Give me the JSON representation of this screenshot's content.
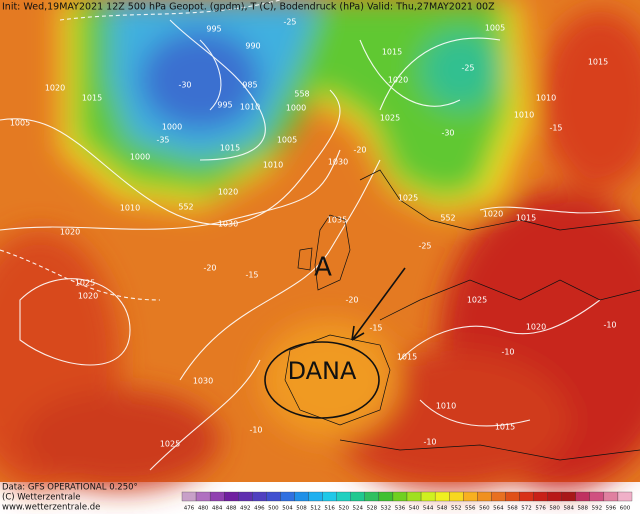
{
  "header": {
    "text": "Init: Wed,19MAY2021 12Z 500 hPa Geopot. (gpdm), T (C), Bodendruck (hPa) Valid: Thu,27MAY2021 00Z"
  },
  "footer": {
    "data_source": "Data: GFS OPERATIONAL 0.250°",
    "copyright": "(C) Wetterzentrale",
    "website": "www.wetterzentrale.de"
  },
  "annotations": {
    "high": "A",
    "low": "DANA"
  },
  "map": {
    "contour_labels": [
      "1005",
      "1020",
      "1015",
      "1000",
      "1000",
      "995",
      "990",
      "985",
      "995",
      "1010",
      "1005",
      "1010",
      "1000",
      "1015",
      "1020",
      "1030",
      "1030",
      "1035",
      "1025",
      "1020",
      "1015",
      "1025",
      "1020",
      "1015",
      "1010",
      "1010",
      "1005",
      "1015",
      "1010",
      "1020",
      "1025",
      "1020",
      "1030",
      "1025",
      "1015",
      "1010",
      "1015",
      "1025",
      "1020",
      "-25",
      "-25",
      "-30",
      "-35",
      "-30",
      "-20",
      "-25",
      "-20",
      "-15",
      "-20",
      "-15",
      "-10",
      "-10",
      "-10",
      "-10",
      "-15",
      "552",
      "552",
      "558"
    ]
  },
  "color_scale": {
    "ticks": [
      476,
      480,
      484,
      488,
      492,
      496,
      500,
      504,
      508,
      512,
      516,
      520,
      524,
      528,
      532,
      536,
      540,
      544,
      548,
      552,
      556,
      560,
      564,
      568,
      572,
      576,
      580,
      584,
      588,
      592,
      596,
      600
    ],
    "colors": [
      "#c8a0c8",
      "#b070c0",
      "#9040b0",
      "#7020a0",
      "#6030b0",
      "#5040c0",
      "#4050d0",
      "#3070e0",
      "#2090e8",
      "#20b0f0",
      "#20c8e8",
      "#20d0c0",
      "#20c890",
      "#30c060",
      "#40c030",
      "#70d020",
      "#a0e020",
      "#d0f020",
      "#f0f020",
      "#f8d820",
      "#f8b020",
      "#f09020",
      "#e87020",
      "#e05018",
      "#d83018",
      "#c82018",
      "#b81818",
      "#a81818",
      "#c03060",
      "#d05080",
      "#e080a0",
      "#f0b0c8"
    ]
  }
}
